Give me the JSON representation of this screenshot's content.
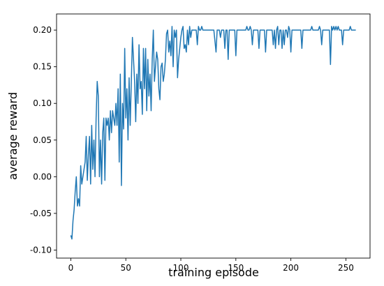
{
  "chart_data": {
    "type": "line",
    "x_label": "training episode",
    "y_label": "average reward",
    "color": "#1f77b4",
    "xlim": [
      -12.95,
      271.95
    ],
    "ylim": [
      -0.111,
      0.222
    ],
    "xticks": [
      0,
      50,
      100,
      150,
      200,
      250
    ],
    "yticks": [
      {
        "value": -0.1,
        "label": "-0.10"
      },
      {
        "value": -0.05,
        "label": "-0.05"
      },
      {
        "value": 0,
        "label": "0.00"
      },
      {
        "value": 0.05,
        "label": "0.05"
      },
      {
        "value": 0.1,
        "label": "0.10"
      },
      {
        "value": 0.15,
        "label": "0.15"
      },
      {
        "value": 0.2,
        "label": "0.20"
      }
    ],
    "x": [
      0,
      1,
      2,
      3,
      4,
      5,
      6,
      7,
      8,
      9,
      10,
      11,
      12,
      13,
      14,
      15,
      16,
      17,
      18,
      19,
      20,
      21,
      22,
      23,
      24,
      25,
      26,
      27,
      28,
      29,
      30,
      31,
      32,
      33,
      34,
      35,
      36,
      37,
      38,
      39,
      40,
      41,
      42,
      43,
      44,
      45,
      46,
      47,
      48,
      49,
      50,
      51,
      52,
      53,
      54,
      55,
      56,
      57,
      58,
      59,
      60,
      61,
      62,
      63,
      64,
      65,
      66,
      67,
      68,
      69,
      70,
      71,
      72,
      73,
      74,
      75,
      76,
      77,
      78,
      79,
      80,
      81,
      82,
      83,
      84,
      85,
      86,
      87,
      88,
      89,
      90,
      91,
      92,
      93,
      94,
      95,
      96,
      97,
      98,
      99,
      100,
      101,
      102,
      103,
      104,
      105,
      106,
      107,
      108,
      109,
      110,
      111,
      112,
      113,
      114,
      115,
      116,
      117,
      118,
      119,
      120,
      121,
      122,
      123,
      124,
      125,
      126,
      127,
      128,
      129,
      130,
      131,
      132,
      133,
      134,
      135,
      136,
      137,
      138,
      139,
      140,
      141,
      142,
      143,
      144,
      145,
      146,
      147,
      148,
      149,
      150,
      151,
      152,
      153,
      154,
      155,
      156,
      157,
      158,
      159,
      160,
      161,
      162,
      163,
      164,
      165,
      166,
      167,
      168,
      169,
      170,
      171,
      172,
      173,
      174,
      175,
      176,
      177,
      178,
      179,
      180,
      181,
      182,
      183,
      184,
      185,
      186,
      187,
      188,
      189,
      190,
      191,
      192,
      193,
      194,
      195,
      196,
      197,
      198,
      199,
      200,
      201,
      202,
      203,
      204,
      205,
      206,
      207,
      208,
      209,
      210,
      211,
      212,
      213,
      214,
      215,
      216,
      217,
      218,
      219,
      220,
      221,
      222,
      223,
      224,
      225,
      226,
      227,
      228,
      229,
      230,
      231,
      232,
      233,
      234,
      235,
      236,
      237,
      238,
      239,
      240,
      241,
      242,
      243,
      244,
      245,
      246,
      247,
      248,
      249,
      250,
      251,
      252,
      253,
      254,
      255,
      256,
      257,
      258,
      259
    ],
    "values": [
      -0.08,
      -0.085,
      -0.06,
      -0.045,
      -0.02,
      0.0,
      -0.04,
      -0.03,
      -0.04,
      0.015,
      -0.01,
      0.0,
      0.01,
      0.02,
      0.055,
      -0.005,
      0.03,
      0.055,
      -0.01,
      0.07,
      0.01,
      0.05,
      0.0,
      0.08,
      0.13,
      0.11,
      0.0,
      0.05,
      -0.01,
      0.06,
      0.08,
      -0.005,
      0.08,
      0.07,
      0.08,
      0.05,
      0.09,
      0.06,
      0.09,
      0.08,
      0.07,
      0.1,
      0.07,
      0.12,
      0.02,
      0.14,
      -0.012,
      0.1,
      0.065,
      0.175,
      0.08,
      0.12,
      0.05,
      0.135,
      0.07,
      0.13,
      0.19,
      0.16,
      0.13,
      0.075,
      0.14,
      0.1,
      0.18,
      0.12,
      0.13,
      0.085,
      0.175,
      0.12,
      0.175,
      0.09,
      0.16,
      0.11,
      0.14,
      0.09,
      0.16,
      0.2,
      0.13,
      0.15,
      0.17,
      0.16,
      0.12,
      0.105,
      0.15,
      0.155,
      0.13,
      0.14,
      0.16,
      0.195,
      0.2,
      0.17,
      0.185,
      0.165,
      0.205,
      0.15,
      0.2,
      0.19,
      0.2,
      0.135,
      0.16,
      0.175,
      0.19,
      0.2,
      0.205,
      0.175,
      0.18,
      0.17,
      0.2,
      0.18,
      0.205,
      0.19,
      0.2,
      0.2,
      0.2,
      0.2,
      0.2,
      0.18,
      0.205,
      0.2,
      0.2,
      0.205,
      0.2,
      0.2,
      0.2,
      0.2,
      0.2,
      0.2,
      0.2,
      0.2,
      0.2,
      0.2,
      0.2,
      0.185,
      0.17,
      0.2,
      0.2,
      0.2,
      0.19,
      0.2,
      0.2,
      0.2,
      0.175,
      0.2,
      0.2,
      0.16,
      0.2,
      0.2,
      0.2,
      0.2,
      0.2,
      0.2,
      0.165,
      0.2,
      0.2,
      0.2,
      0.2,
      0.2,
      0.2,
      0.2,
      0.2,
      0.2,
      0.205,
      0.2,
      0.2,
      0.205,
      0.2,
      0.18,
      0.2,
      0.2,
      0.2,
      0.2,
      0.2,
      0.175,
      0.2,
      0.2,
      0.2,
      0.2,
      0.2,
      0.17,
      0.2,
      0.2,
      0.2,
      0.2,
      0.2,
      0.2,
      0.18,
      0.2,
      0.175,
      0.2,
      0.205,
      0.18,
      0.2,
      0.2,
      0.175,
      0.2,
      0.18,
      0.2,
      0.2,
      0.19,
      0.205,
      0.2,
      0.17,
      0.2,
      0.2,
      0.2,
      0.2,
      0.2,
      0.2,
      0.2,
      0.2,
      0.2,
      0.175,
      0.2,
      0.2,
      0.2,
      0.2,
      0.2,
      0.2,
      0.2,
      0.2,
      0.205,
      0.2,
      0.2,
      0.2,
      0.2,
      0.2,
      0.2,
      0.205,
      0.2,
      0.18,
      0.2,
      0.2,
      0.2,
      0.2,
      0.2,
      0.2,
      0.2,
      0.153,
      0.205,
      0.2,
      0.205,
      0.2,
      0.205,
      0.2,
      0.205,
      0.2,
      0.2,
      0.2,
      0.18,
      0.2,
      0.2,
      0.2,
      0.2,
      0.2,
      0.2,
      0.205,
      0.2,
      0.2,
      0.2,
      0.2,
      0.2
    ]
  }
}
